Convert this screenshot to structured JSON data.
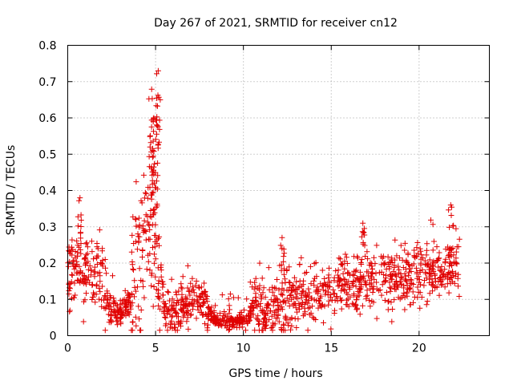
{
  "chart_data": {
    "type": "scatter",
    "title": "Day 267 of 2021, SRMTID for receiver cn12",
    "xlabel": "GPS time / hours",
    "ylabel": "SRMTID / TECUs",
    "xlim": [
      0,
      24
    ],
    "ylim": [
      0,
      0.8
    ],
    "xticks": [
      0,
      5,
      10,
      15,
      20
    ],
    "yticks": [
      0,
      0.1,
      0.2,
      0.3,
      0.4,
      0.5,
      0.6,
      0.7,
      0.8
    ],
    "xtick_labels": [
      "0",
      "5",
      "10",
      "15",
      "20"
    ],
    "ytick_labels": [
      "0",
      "0.1",
      "0.2",
      "0.3",
      "0.4",
      "0.5",
      "0.6",
      "0.7",
      "0.8"
    ],
    "grid": true,
    "marker": "plus",
    "color": "#e00000",
    "x_range_of_data": [
      0,
      22.3
    ],
    "trend_profile": [
      [
        0.0,
        0.15
      ],
      [
        0.5,
        0.19
      ],
      [
        1.0,
        0.16
      ],
      [
        1.5,
        0.19
      ],
      [
        2.0,
        0.15
      ],
      [
        2.3,
        0.07
      ],
      [
        3.0,
        0.06
      ],
      [
        3.5,
        0.1
      ],
      [
        4.0,
        0.2
      ],
      [
        4.5,
        0.26
      ],
      [
        5.0,
        0.3
      ],
      [
        5.3,
        0.15
      ],
      [
        5.6,
        0.07
      ],
      [
        6.5,
        0.07
      ],
      [
        7.0,
        0.1
      ],
      [
        7.5,
        0.1
      ],
      [
        8.0,
        0.07
      ],
      [
        8.5,
        0.04
      ],
      [
        9.5,
        0.04
      ],
      [
        10.2,
        0.04
      ],
      [
        10.5,
        0.08
      ],
      [
        11.0,
        0.07
      ],
      [
        11.5,
        0.06
      ],
      [
        12.0,
        0.09
      ],
      [
        13.0,
        0.1
      ],
      [
        14.0,
        0.12
      ],
      [
        15.0,
        0.13
      ],
      [
        16.0,
        0.14
      ],
      [
        17.0,
        0.15
      ],
      [
        18.0,
        0.15
      ],
      [
        19.0,
        0.15
      ],
      [
        20.0,
        0.17
      ],
      [
        21.0,
        0.16
      ],
      [
        22.0,
        0.2
      ],
      [
        22.3,
        0.21
      ]
    ],
    "peaks": [
      {
        "x": 0.7,
        "y": 0.38
      },
      {
        "x": 4.9,
        "y": 0.6
      },
      {
        "x": 5.15,
        "y": 0.73
      },
      {
        "x": 12.2,
        "y": 0.27
      },
      {
        "x": 16.8,
        "y": 0.31
      },
      {
        "x": 21.8,
        "y": 0.36
      }
    ]
  }
}
